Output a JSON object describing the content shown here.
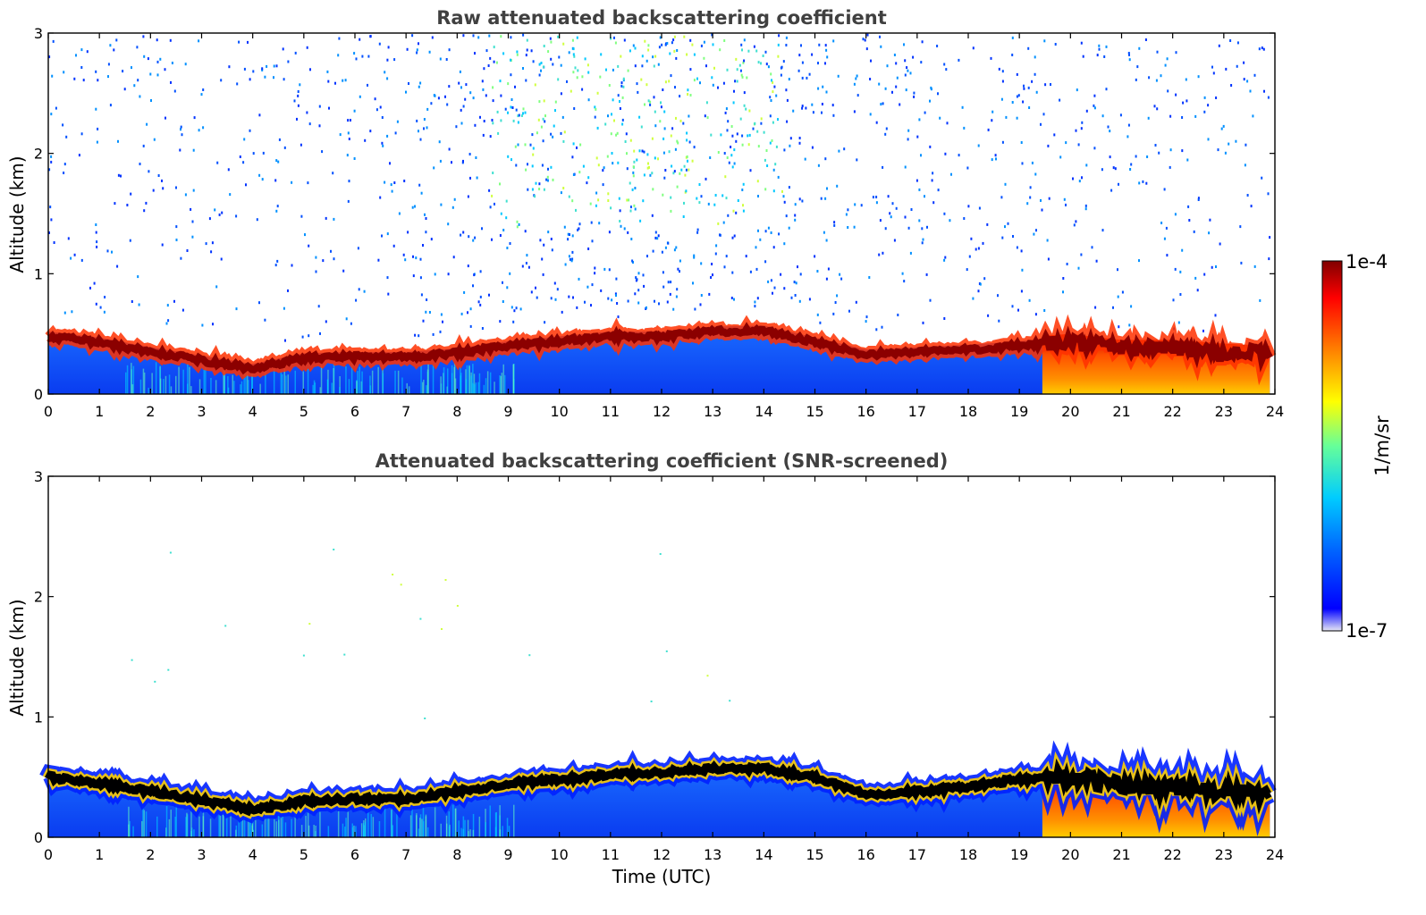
{
  "chart_data": [
    {
      "type": "heatmap",
      "title": "Raw attenuated backscattering coefficient",
      "xlabel": "",
      "ylabel": "Altitude (km)",
      "xlim": [
        0,
        24
      ],
      "ylim": [
        0,
        3
      ],
      "xticks": [
        "0",
        "1",
        "2",
        "3",
        "4",
        "5",
        "6",
        "7",
        "8",
        "9",
        "10",
        "11",
        "12",
        "13",
        "14",
        "15",
        "16",
        "17",
        "18",
        "19",
        "20",
        "21",
        "22",
        "23",
        "24"
      ],
      "yticks": [
        "0",
        "1",
        "2",
        "3"
      ],
      "layer_top_km": [
        {
          "t": 0,
          "h": 0.6
        },
        {
          "t": 1,
          "h": 0.55
        },
        {
          "t": 2,
          "h": 0.47
        },
        {
          "t": 3,
          "h": 0.4
        },
        {
          "t": 4,
          "h": 0.33
        },
        {
          "t": 5,
          "h": 0.42
        },
        {
          "t": 6,
          "h": 0.43
        },
        {
          "t": 7,
          "h": 0.43
        },
        {
          "t": 8,
          "h": 0.46
        },
        {
          "t": 9,
          "h": 0.52
        },
        {
          "t": 10,
          "h": 0.56
        },
        {
          "t": 11,
          "h": 0.6
        },
        {
          "t": 12,
          "h": 0.6
        },
        {
          "t": 13,
          "h": 0.64
        },
        {
          "t": 14,
          "h": 0.65
        },
        {
          "t": 15,
          "h": 0.55
        },
        {
          "t": 16,
          "h": 0.45
        },
        {
          "t": 17,
          "h": 0.47
        },
        {
          "t": 18,
          "h": 0.49
        },
        {
          "t": 19,
          "h": 0.52
        },
        {
          "t": 20,
          "h": 0.55
        },
        {
          "t": 21,
          "h": 0.5
        },
        {
          "t": 22,
          "h": 0.5
        },
        {
          "t": 23,
          "h": 0.47
        },
        {
          "t": 23.9,
          "h": 0.45
        }
      ],
      "high_signal_start_utc": 19.45,
      "grid": false
    },
    {
      "type": "heatmap",
      "title": "Attenuated backscattering coefficient (SNR-screened)",
      "xlabel": "Time (UTC)",
      "ylabel": "Altitude (km)",
      "xlim": [
        0,
        24
      ],
      "ylim": [
        0,
        3
      ],
      "xticks": [
        "0",
        "1",
        "2",
        "3",
        "4",
        "5",
        "6",
        "7",
        "8",
        "9",
        "10",
        "11",
        "12",
        "13",
        "14",
        "15",
        "16",
        "17",
        "18",
        "19",
        "20",
        "21",
        "22",
        "23",
        "24"
      ],
      "yticks": [
        "0",
        "1",
        "2",
        "3"
      ],
      "layer_top_km": [
        {
          "t": 0,
          "h": 0.62
        },
        {
          "t": 1,
          "h": 0.57
        },
        {
          "t": 2,
          "h": 0.5
        },
        {
          "t": 3,
          "h": 0.43
        },
        {
          "t": 4,
          "h": 0.35
        },
        {
          "t": 5,
          "h": 0.42
        },
        {
          "t": 6,
          "h": 0.44
        },
        {
          "t": 7,
          "h": 0.44
        },
        {
          "t": 8,
          "h": 0.5
        },
        {
          "t": 9,
          "h": 0.57
        },
        {
          "t": 10,
          "h": 0.6
        },
        {
          "t": 11,
          "h": 0.64
        },
        {
          "t": 12,
          "h": 0.66
        },
        {
          "t": 13,
          "h": 0.69
        },
        {
          "t": 14,
          "h": 0.69
        },
        {
          "t": 15,
          "h": 0.62
        },
        {
          "t": 16,
          "h": 0.48
        },
        {
          "t": 17,
          "h": 0.5
        },
        {
          "t": 18,
          "h": 0.54
        },
        {
          "t": 19,
          "h": 0.6
        },
        {
          "t": 20,
          "h": 0.62
        },
        {
          "t": 21,
          "h": 0.55
        },
        {
          "t": 22,
          "h": 0.53
        },
        {
          "t": 23,
          "h": 0.5
        },
        {
          "t": 23.9,
          "h": 0.48
        }
      ],
      "high_signal_start_utc": 19.45,
      "grid": false
    }
  ],
  "colorbar": {
    "label": "1/m/sr",
    "max_label": "1e-4",
    "min_label": "1e-7",
    "scale": "log",
    "colormap": "jet",
    "colors": [
      "#e6e6f5",
      "#0000ff",
      "#0080ff",
      "#00ffff",
      "#80ff80",
      "#ffff00",
      "#ff8000",
      "#ff0000",
      "#800000"
    ]
  }
}
